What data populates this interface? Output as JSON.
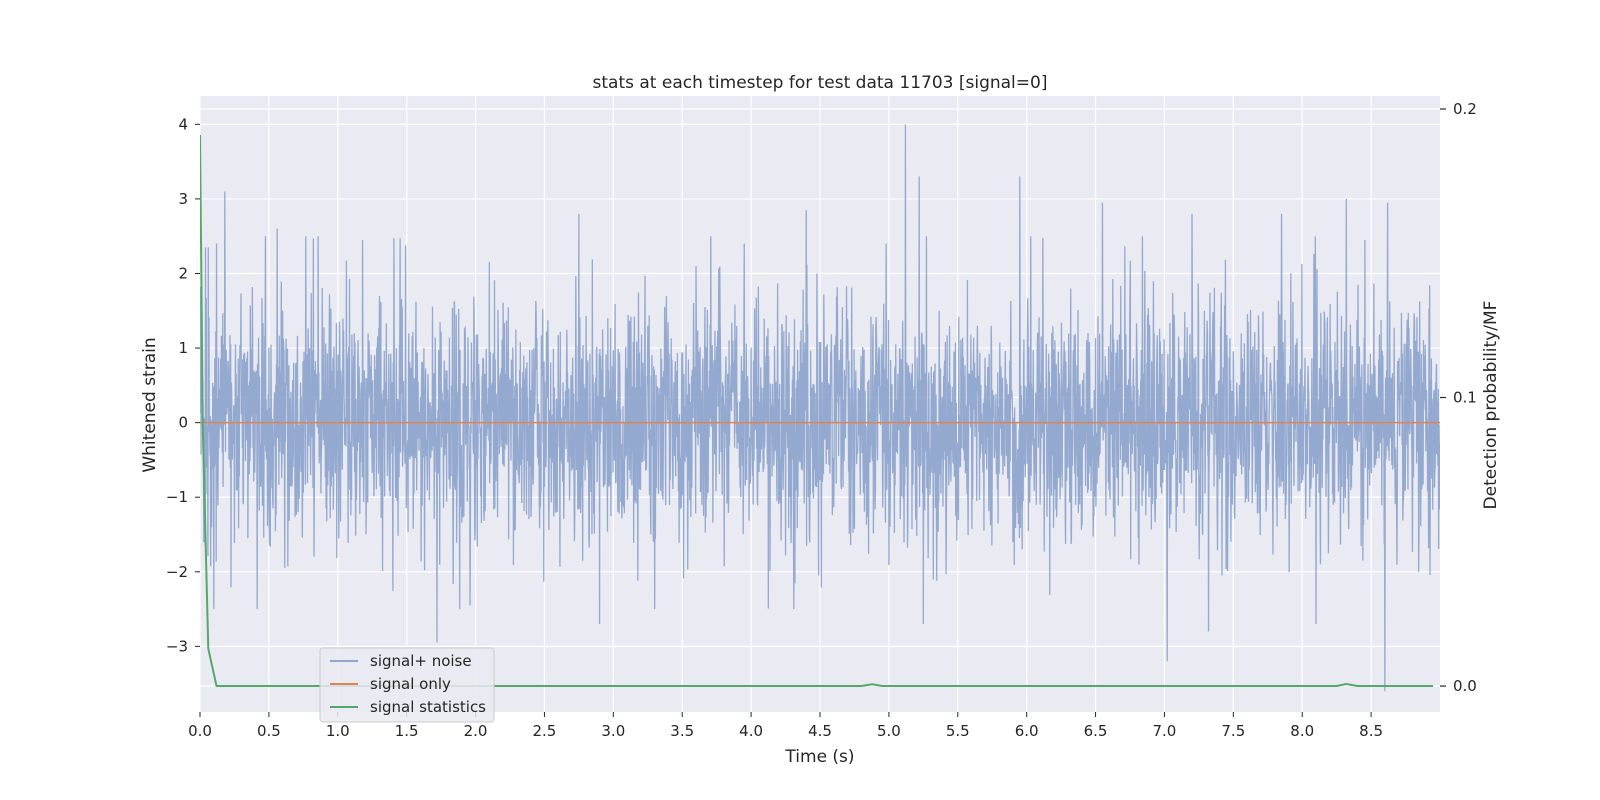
{
  "chart_data": {
    "type": "line",
    "title": "stats at each timestep for test data 11703 [signal=0]",
    "xlabel": "Time (s)",
    "ylabel": "Whitened strain",
    "y2label": "Detection probability/MF",
    "xlim": [
      0.0,
      9.0
    ],
    "ylim": [
      -3.88,
      4.38
    ],
    "y2lim": [
      -0.009,
      0.2045
    ],
    "xticks": [
      "0.0",
      "0.5",
      "1.0",
      "1.5",
      "2.0",
      "2.5",
      "3.0",
      "3.5",
      "4.0",
      "4.5",
      "5.0",
      "5.5",
      "6.0",
      "6.5",
      "7.0",
      "7.5",
      "8.0",
      "8.5"
    ],
    "yticks": [
      "4",
      "3",
      "2",
      "1",
      "0",
      "−1",
      "−2",
      "−3"
    ],
    "y2ticks": [
      "0.2",
      "0.1",
      "0.0"
    ],
    "grid": true,
    "legend_position": "lower-left",
    "series": [
      {
        "name": "signal+ noise",
        "color": "#8fa5cc",
        "noise_std": 0.82,
        "peaks": [
          {
            "x": 0.18,
            "y": 3.1
          },
          {
            "x": 0.06,
            "y": 2.35
          },
          {
            "x": 0.12,
            "y": 2.4
          },
          {
            "x": 0.56,
            "y": 2.6
          },
          {
            "x": 1.18,
            "y": 2.45
          },
          {
            "x": 2.75,
            "y": 2.8
          },
          {
            "x": 3.95,
            "y": 2.4
          },
          {
            "x": 4.4,
            "y": 2.85
          },
          {
            "x": 5.12,
            "y": 4.0
          },
          {
            "x": 5.22,
            "y": 3.3
          },
          {
            "x": 4.98,
            "y": 2.4
          },
          {
            "x": 5.95,
            "y": 3.3
          },
          {
            "x": 6.55,
            "y": 2.95
          },
          {
            "x": 7.2,
            "y": 2.8
          },
          {
            "x": 7.85,
            "y": 2.8
          },
          {
            "x": 8.32,
            "y": 3.0
          },
          {
            "x": 8.62,
            "y": 2.95
          },
          {
            "x": 0.1,
            "y": -2.5
          },
          {
            "x": 1.72,
            "y": -2.95
          },
          {
            "x": 2.9,
            "y": -2.7
          },
          {
            "x": 5.25,
            "y": -2.7
          },
          {
            "x": 7.02,
            "y": -3.2
          },
          {
            "x": 7.32,
            "y": -2.8
          },
          {
            "x": 8.1,
            "y": -2.7
          },
          {
            "x": 8.6,
            "y": -3.6
          },
          {
            "x": 3.3,
            "y": -2.5
          }
        ]
      },
      {
        "name": "signal only",
        "color": "#dd8452",
        "x": [
          0.0,
          9.0
        ],
        "y": [
          0.0,
          0.0
        ]
      },
      {
        "name": "signal statistics",
        "color": "#55a868",
        "axis": "right",
        "x": [
          0.0,
          0.02,
          0.06,
          0.12,
          0.5,
          1.0,
          2.0,
          3.0,
          4.0,
          4.8,
          4.88,
          4.95,
          5.5,
          6.0,
          7.0,
          8.0,
          8.25,
          8.32,
          8.4,
          8.5,
          8.95
        ],
        "y": [
          0.191,
          0.09,
          0.013,
          0.0,
          0.0,
          0.0,
          0.0,
          0.0,
          0.0,
          0.0,
          0.0006,
          0.0,
          0.0,
          0.0,
          0.0,
          0.0,
          0.0,
          0.0007,
          0.0,
          0.0,
          0.0
        ]
      }
    ]
  }
}
